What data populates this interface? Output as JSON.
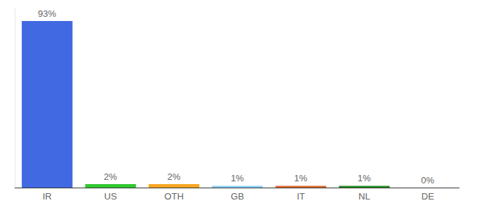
{
  "chart_data": {
    "type": "bar",
    "categories": [
      "IR",
      "US",
      "OTH",
      "GB",
      "IT",
      "NL",
      "DE"
    ],
    "values": [
      93,
      2,
      2,
      1,
      1,
      1,
      0
    ],
    "value_labels": [
      "93%",
      "2%",
      "2%",
      "1%",
      "1%",
      "1%",
      "0%"
    ],
    "colors": [
      "#4169e1",
      "#32c832",
      "#f5a623",
      "#87cefa",
      "#d9692e",
      "#228b22",
      "#9932cc"
    ],
    "ylim": [
      0,
      100
    ],
    "data_labels": true,
    "tick_labels": "x",
    "grid": false
  }
}
